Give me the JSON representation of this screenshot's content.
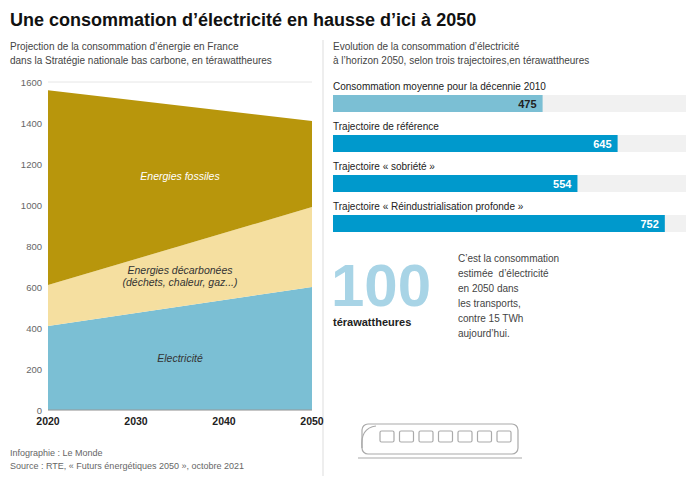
{
  "chart_data": [
    {
      "type": "area",
      "stacked": true,
      "title": "Une consommation d’électricité en hausse d’ici à 2050",
      "subtitle": [
        "Projection de la consommation d’énergie en France",
        "dans la Stratégie nationale bas carbone, en térawattheures"
      ],
      "x": [
        2020,
        2050
      ],
      "series": [
        {
          "name": "Electricité",
          "color": "#7BBFD4",
          "values": [
            410,
            600
          ]
        },
        {
          "name": "Energies décarbonées\n(déchets, chaleur, gaz...)",
          "color": "#F5DFA0",
          "values": [
            200,
            390
          ]
        },
        {
          "name": "Energies fossiles",
          "color": "#B8960C",
          "values": [
            950,
            420
          ]
        }
      ],
      "xlim": [
        2020,
        2050
      ],
      "xticks": [
        2020,
        2030,
        2040,
        2050
      ],
      "ylim": [
        0,
        1600
      ],
      "yticks": [
        0,
        200,
        400,
        600,
        800,
        1000,
        1200,
        1400,
        1600
      ],
      "grid": true,
      "annotations": [
        "Infographie : Le Monde",
        "Source : RTE, « Futurs énergétiques 2050 », octobre 2021"
      ]
    },
    {
      "type": "bar",
      "orientation": "horizontal",
      "subtitle": [
        "Evolution de la consommation d’électricité",
        "à l’horizon 2050, selon trois trajectoires,en térawattheures"
      ],
      "categories": [
        "Consommation moyenne pour la décennie 2010",
        "Trajectoire de référence",
        "Trajectoire « sobriété »",
        "Trajectoire « Réindustrialisation profonde »"
      ],
      "values": [
        475,
        645,
        554,
        752
      ],
      "colors": [
        "#7BBFD4",
        "#0099CC",
        "#0099CC",
        "#0099CC"
      ],
      "xlim": [
        0,
        800
      ],
      "data_labels": true,
      "tick_labels": "y",
      "annotations": [
        "100",
        "térawattheures",
        "C’est la consommation\nestimée  d’électricité\nen 2050 dans\nles transports,\ncontre 15 TWh\naujourd’hui."
      ]
    }
  ]
}
